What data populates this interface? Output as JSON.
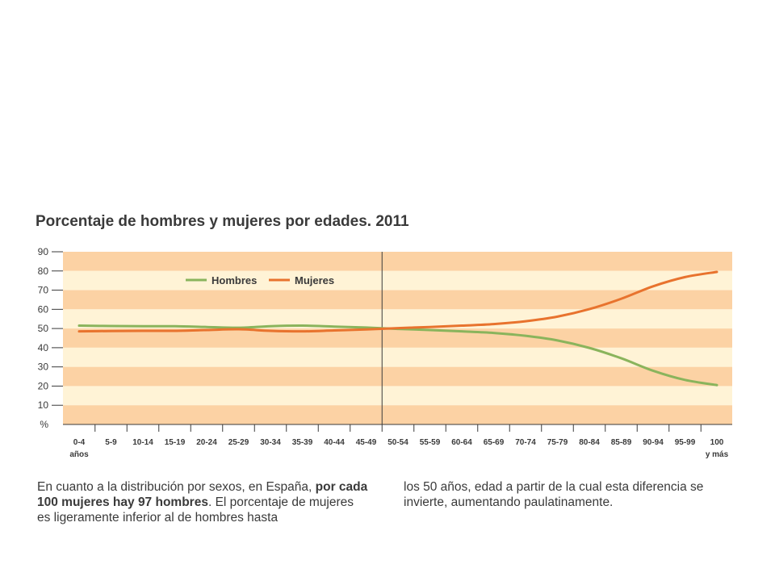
{
  "chart_data": {
    "type": "line",
    "title": "Porcentaje de hombres y mujeres por edades. 2011",
    "ylabel": "%",
    "ylim": [
      0,
      90
    ],
    "yticks": [
      10,
      20,
      30,
      40,
      50,
      60,
      70,
      80,
      90
    ],
    "categories": [
      {
        "line1": "0-4",
        "line2": "años"
      },
      {
        "line1": "5-9",
        "line2": ""
      },
      {
        "line1": "10-14",
        "line2": ""
      },
      {
        "line1": "15-19",
        "line2": ""
      },
      {
        "line1": "20-24",
        "line2": ""
      },
      {
        "line1": "25-29",
        "line2": ""
      },
      {
        "line1": "30-34",
        "line2": ""
      },
      {
        "line1": "35-39",
        "line2": ""
      },
      {
        "line1": "40-44",
        "line2": ""
      },
      {
        "line1": "45-49",
        "line2": ""
      },
      {
        "line1": "50-54",
        "line2": ""
      },
      {
        "line1": "55-59",
        "line2": ""
      },
      {
        "line1": "60-64",
        "line2": ""
      },
      {
        "line1": "65-69",
        "line2": ""
      },
      {
        "line1": "70-74",
        "line2": ""
      },
      {
        "line1": "75-79",
        "line2": ""
      },
      {
        "line1": "80-84",
        "line2": ""
      },
      {
        "line1": "85-89",
        "line2": ""
      },
      {
        "line1": "90-94",
        "line2": ""
      },
      {
        "line1": "95-99",
        "line2": ""
      },
      {
        "line1": "100",
        "line2": "y más"
      }
    ],
    "series": [
      {
        "name": "Hombres",
        "color": "#8ab45c",
        "values": [
          51.5,
          51.3,
          51.2,
          51.2,
          50.8,
          50.4,
          51.2,
          51.5,
          51.0,
          50.5,
          49.8,
          49.2,
          48.5,
          47.7,
          46.2,
          43.8,
          39.9,
          34.5,
          28.0,
          23.2,
          20.5
        ]
      },
      {
        "name": "Mujeres",
        "color": "#e8732e",
        "values": [
          48.5,
          48.7,
          48.8,
          48.8,
          49.2,
          49.6,
          48.8,
          48.5,
          49.0,
          49.5,
          50.2,
          50.8,
          51.5,
          52.3,
          53.8,
          56.2,
          60.1,
          65.5,
          72.0,
          76.8,
          79.5
        ]
      }
    ],
    "legend_placement": "top-left",
    "band_colors": [
      "#fcd2a4",
      "#fff3d6"
    ],
    "divider_after_category": "45-49"
  },
  "caption": {
    "left_a": "En cuanto a la distribución por sexos, en España, ",
    "left_b": "por cada 100 mujeres hay 97 hombres",
    "left_c": ". El porcentaje de mujeres es ligeramente inferior al de hombres hasta",
    "right": "los 50 años, edad a partir de la cual esta diferencia se invierte, aumentando paulatinamente."
  }
}
